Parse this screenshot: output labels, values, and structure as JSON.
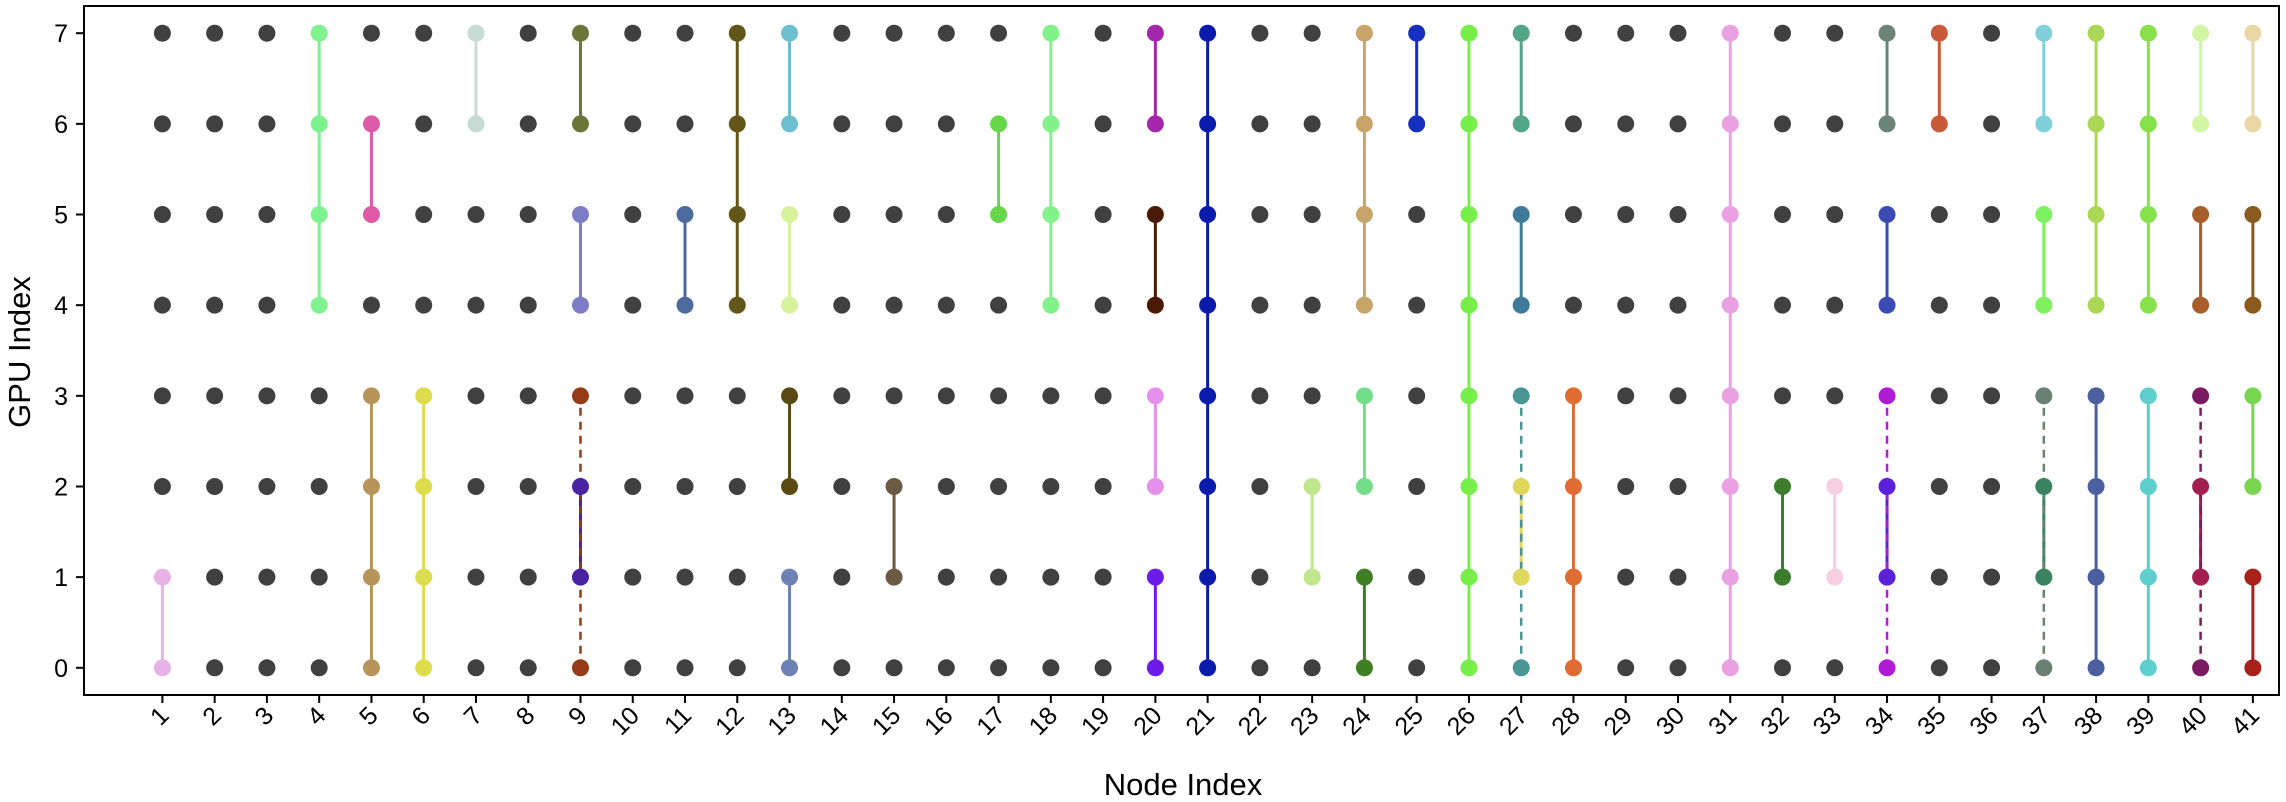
{
  "chart_data": {
    "type": "scatter",
    "title": "",
    "xlabel": "Node Index",
    "ylabel": "GPU Index",
    "x_ticks": [
      1,
      2,
      3,
      4,
      5,
      6,
      7,
      8,
      9,
      10,
      11,
      12,
      13,
      14,
      15,
      16,
      17,
      18,
      19,
      20,
      21,
      22,
      23,
      24,
      25,
      26,
      27,
      28,
      29,
      30,
      31,
      32,
      33,
      34,
      35,
      36,
      37,
      38,
      39,
      40,
      41
    ],
    "y_ticks": [
      0,
      1,
      2,
      3,
      4,
      5,
      6,
      7
    ],
    "xlim": [
      -0.5,
      41.5
    ],
    "ylim": [
      -0.3,
      7.3
    ],
    "grid": false,
    "idle_color": "#404040",
    "groups": [
      {
        "node": 1,
        "gpus": [
          0,
          1
        ],
        "color": "#e7b3e6"
      },
      {
        "node": 4,
        "gpus": [
          4,
          5,
          6,
          7
        ],
        "color": "#7ef28f"
      },
      {
        "node": 5,
        "gpus": [
          5,
          6
        ],
        "color": "#df5aa7"
      },
      {
        "node": 5,
        "gpus": [
          0,
          1,
          2,
          3
        ],
        "color": "#b7945a"
      },
      {
        "node": 6,
        "gpus": [
          0,
          1,
          2,
          3
        ],
        "color": "#dcdc4c"
      },
      {
        "node": 7,
        "gpus": [
          6,
          7
        ],
        "color": "#c7dad3"
      },
      {
        "node": 9,
        "gpus": [
          6,
          7
        ],
        "color": "#6b7439"
      },
      {
        "node": 9,
        "gpus": [
          4,
          5
        ],
        "color": "#7d7dc6"
      },
      {
        "node": 9,
        "gpus": [
          1,
          2
        ],
        "color": "#4a23a3"
      },
      {
        "node": 9,
        "gpus": [
          0,
          3
        ],
        "color": "#933c15",
        "dashed": true
      },
      {
        "node": 11,
        "gpus": [
          4,
          5
        ],
        "color": "#4d6a9c"
      },
      {
        "node": 12,
        "gpus": [
          4,
          5,
          6,
          7
        ],
        "color": "#625619"
      },
      {
        "node": 13,
        "gpus": [
          6,
          7
        ],
        "color": "#6cbfcf"
      },
      {
        "node": 13,
        "gpus": [
          4,
          5
        ],
        "color": "#d6f29b"
      },
      {
        "node": 13,
        "gpus": [
          2,
          3
        ],
        "color": "#594913"
      },
      {
        "node": 13,
        "gpus": [
          0,
          1
        ],
        "color": "#6d81b2"
      },
      {
        "node": 15,
        "gpus": [
          1,
          2
        ],
        "color": "#6b5a44"
      },
      {
        "node": 17,
        "gpus": [
          5,
          6
        ],
        "color": "#67d64a"
      },
      {
        "node": 18,
        "gpus": [
          4,
          5,
          6,
          7
        ],
        "color": "#84f28a"
      },
      {
        "node": 20,
        "gpus": [
          6,
          7
        ],
        "color": "#a326ac"
      },
      {
        "node": 20,
        "gpus": [
          4,
          5
        ],
        "color": "#4b1a07"
      },
      {
        "node": 20,
        "gpus": [
          2,
          3
        ],
        "color": "#e491ea"
      },
      {
        "node": 20,
        "gpus": [
          0,
          1
        ],
        "color": "#6e1ae8"
      },
      {
        "node": 21,
        "gpus": [
          0,
          1,
          2,
          3,
          4,
          5,
          6,
          7
        ],
        "color": "#0a1aab"
      },
      {
        "node": 23,
        "gpus": [
          1,
          2
        ],
        "color": "#c0e68e"
      },
      {
        "node": 24,
        "gpus": [
          4,
          5,
          6,
          7
        ],
        "color": "#c7a46a"
      },
      {
        "node": 24,
        "gpus": [
          2,
          3
        ],
        "color": "#74dd8a"
      },
      {
        "node": 24,
        "gpus": [
          0,
          1
        ],
        "color": "#3f7f23"
      },
      {
        "node": 25,
        "gpus": [
          6,
          7
        ],
        "color": "#1530bf"
      },
      {
        "node": 26,
        "gpus": [
          0,
          1,
          2,
          3,
          4,
          5,
          6,
          7
        ],
        "color": "#77ee4a"
      },
      {
        "node": 27,
        "gpus": [
          6,
          7
        ],
        "color": "#52a687"
      },
      {
        "node": 27,
        "gpus": [
          4,
          5
        ],
        "color": "#3e7a9a"
      },
      {
        "node": 27,
        "gpus": [
          1,
          2
        ],
        "color": "#dfd85c"
      },
      {
        "node": 27,
        "gpus": [
          0,
          3
        ],
        "color": "#4a9696",
        "dashed": true
      },
      {
        "node": 28,
        "gpus": [
          0,
          1,
          2,
          3
        ],
        "color": "#e06b33"
      },
      {
        "node": 31,
        "gpus": [
          0,
          1,
          2,
          3,
          4,
          5,
          6,
          7
        ],
        "color": "#eaa0e2"
      },
      {
        "node": 32,
        "gpus": [
          1,
          2
        ],
        "color": "#3b7d2d"
      },
      {
        "node": 33,
        "gpus": [
          1,
          2
        ],
        "color": "#f6cfe2"
      },
      {
        "node": 34,
        "gpus": [
          6,
          7
        ],
        "color": "#6c8378"
      },
      {
        "node": 34,
        "gpus": [
          4,
          5
        ],
        "color": "#3c4ab5"
      },
      {
        "node": 34,
        "gpus": [
          1,
          2
        ],
        "color": "#5b20d9"
      },
      {
        "node": 34,
        "gpus": [
          0,
          3
        ],
        "color": "#b01bd6",
        "dashed": true
      },
      {
        "node": 35,
        "gpus": [
          6,
          7
        ],
        "color": "#c95a37"
      },
      {
        "node": 37,
        "gpus": [
          6,
          7
        ],
        "color": "#7fd0da"
      },
      {
        "node": 37,
        "gpus": [
          4,
          5
        ],
        "color": "#7ff060"
      },
      {
        "node": 37,
        "gpus": [
          1,
          2
        ],
        "color": "#3a8260"
      },
      {
        "node": 37,
        "gpus": [
          0,
          3
        ],
        "color": "#6a8171",
        "dashed": true
      },
      {
        "node": 38,
        "gpus": [
          4,
          5,
          6,
          7
        ],
        "color": "#acd655"
      },
      {
        "node": 38,
        "gpus": [
          0,
          1,
          2,
          3
        ],
        "color": "#4a5ea0"
      },
      {
        "node": 39,
        "gpus": [
          4,
          5,
          6,
          7
        ],
        "color": "#86e14b"
      },
      {
        "node": 39,
        "gpus": [
          0,
          1,
          2,
          3
        ],
        "color": "#5ecfcc"
      },
      {
        "node": 40,
        "gpus": [
          6,
          7
        ],
        "color": "#d2f6a3"
      },
      {
        "node": 40,
        "gpus": [
          4,
          5
        ],
        "color": "#a85e2a"
      },
      {
        "node": 40,
        "gpus": [
          1,
          2
        ],
        "color": "#a3204e"
      },
      {
        "node": 40,
        "gpus": [
          0,
          3
        ],
        "color": "#7a1a62",
        "dashed": true
      },
      {
        "node": 41,
        "gpus": [
          6,
          7
        ],
        "color": "#e9d8a6"
      },
      {
        "node": 41,
        "gpus": [
          4,
          5
        ],
        "color": "#8a5a1f"
      },
      {
        "node": 41,
        "gpus": [
          2,
          3
        ],
        "color": "#79d44f"
      },
      {
        "node": 41,
        "gpus": [
          0,
          1
        ],
        "color": "#a8201a"
      }
    ]
  }
}
